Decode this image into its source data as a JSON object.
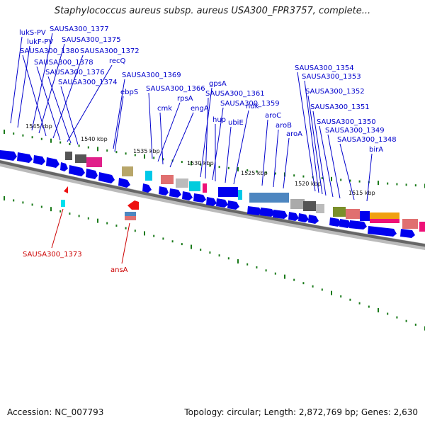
{
  "title": "Staphylococcus aureus subsp. aureus USA300_FPR3757, complete...",
  "footer": {
    "accession": "Accession: NC_007793",
    "summary": "Topology: circular; Length: 2,872,769 bp; Genes: 2,630"
  },
  "kbp_ticks": [
    "1545 kbp",
    "1540 kbp",
    "1535 kbp",
    "1530 kbp",
    "1525 kbp",
    "1520 kbp",
    "1515 kbp"
  ],
  "gene_labels": [
    "lukS-PV",
    "lukF-PV",
    "SAUSA300_1377",
    "SAUSA300_1375",
    "SAUSA300_1380",
    "SAUSA300_1372",
    "SAUSA300_1378",
    "recQ",
    "SAUSA300_1376",
    "SAUSA300_1374",
    "SAUSA300_1369",
    "ebpS",
    "SAUSA300_1366",
    "rpsA",
    "cmk",
    "engA",
    "gpsA",
    "SAUSA300_1361",
    "SAUSA300_1359",
    "hup",
    "ubiE",
    "ndk",
    "aroC",
    "aroB",
    "aroA",
    "SAUSA300_1354",
    "SAUSA300_1353",
    "SAUSA300_1352",
    "SAUSA300_1351",
    "SAUSA300_1350",
    "SAUSA300_1349",
    "SAUSA300_1348",
    "birA"
  ],
  "inner_labels": [
    "SAUSA300_1373",
    "ansA"
  ],
  "colors": {
    "forward_gene": "#0000ee",
    "label_blue": "#0000cc",
    "label_red": "#cc0000",
    "backbone": "#777777",
    "tick": "#1a7a1a"
  }
}
